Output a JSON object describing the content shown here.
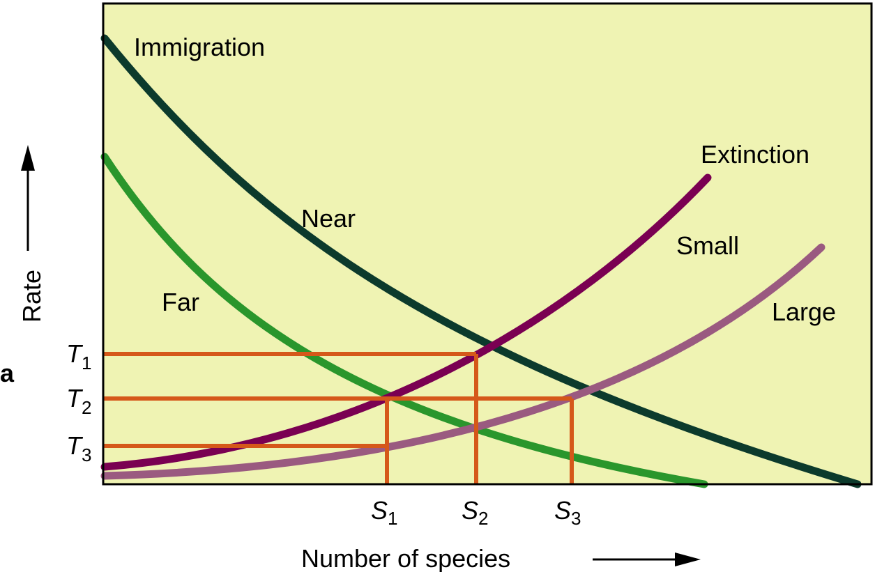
{
  "panel_label": "a",
  "y_axis_label": "Rate",
  "x_axis_label": "Number of species",
  "curve_labels": {
    "immigration": "Immigration",
    "near": "Near",
    "far": "Far",
    "extinction": "Extinction",
    "small": "Small",
    "large": "Large"
  },
  "rate_levels": [
    {
      "letter": "T",
      "sub": "1"
    },
    {
      "letter": "T",
      "sub": "2"
    },
    {
      "letter": "T",
      "sub": "3"
    }
  ],
  "species_levels": [
    {
      "letter": "S",
      "sub": "1"
    },
    {
      "letter": "S",
      "sub": "2"
    },
    {
      "letter": "S",
      "sub": "3"
    }
  ]
}
